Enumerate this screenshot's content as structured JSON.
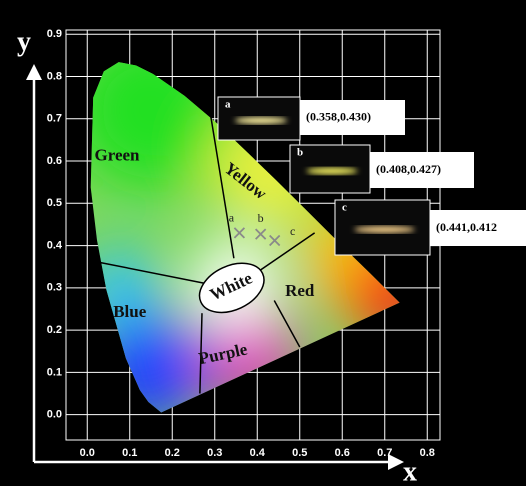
{
  "chart_data": {
    "type": "scatter",
    "x_label": "x",
    "y_label": "y",
    "xlim": [
      -0.05,
      0.83
    ],
    "ylim": [
      -0.06,
      0.91
    ],
    "xticks": [
      {
        "value": 0,
        "label": "0.0"
      },
      0.1,
      0.2,
      0.3,
      0.4,
      0.5,
      0.6,
      0.7,
      0.8
    ],
    "yticks": [
      {
        "value": 0,
        "label": "0.0"
      },
      0.1,
      0.2,
      0.3,
      0.4,
      0.5,
      0.6,
      0.7,
      0.8,
      0.9
    ],
    "grid": true,
    "x": [
      0.358,
      0.408,
      0.441
    ],
    "values": [
      0.43,
      0.427,
      0.412
    ],
    "point_labels": [
      "a",
      "b",
      "c"
    ],
    "value_labels": [
      "(0.358,0.430)",
      "(0.408,0.427)",
      "(0.441,0.412"
    ],
    "color": "#8a8a8a",
    "annotations": [
      "Green",
      "Yellow",
      "White",
      "Red",
      "Blue",
      "Purple"
    ]
  }
}
